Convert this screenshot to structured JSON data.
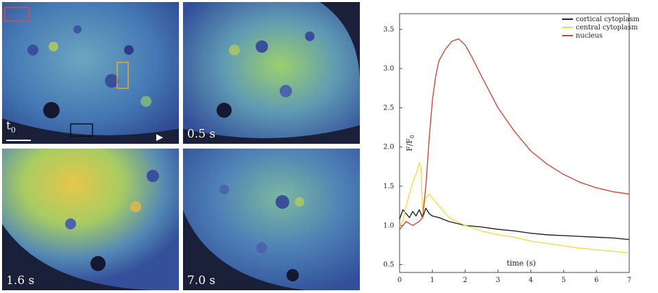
{
  "panels": [
    {
      "id": "t0",
      "label_main": "t",
      "label_sub": "0"
    },
    {
      "id": "p05",
      "label": "0.5 s"
    },
    {
      "id": "p16",
      "label": "1.6 s"
    },
    {
      "id": "p70",
      "label": "7.0 s"
    }
  ],
  "colors": {
    "cortical": "#222222",
    "central": "#f2dc4a",
    "nucleus": "#cc4a3c",
    "roi_red": "#e04a4a",
    "roi_orange": "#e8a838",
    "roi_black": "#101010"
  },
  "chart_data": {
    "type": "line",
    "xlabel": "time (s)",
    "ylabel": "F/F",
    "ylabel_sub": "0",
    "xlim": [
      0,
      7
    ],
    "ylim": [
      0.4,
      3.7
    ],
    "xticks": [
      0,
      1,
      2,
      3,
      4,
      5,
      6,
      7
    ],
    "xtick_labels": [
      "0",
      "1",
      "2",
      "3",
      "4",
      "5",
      "6",
      "7"
    ],
    "yticks": [
      0.5,
      1.0,
      1.5,
      2.0,
      2.5,
      3.0,
      3.5
    ],
    "ytick_labels": [
      "0.5",
      "1.0",
      "1.5",
      "2.0",
      "2.5",
      "3.0",
      "3.5"
    ],
    "legend_position": "top-right",
    "series": [
      {
        "name": "cortical cytoplasm",
        "color": "#222222",
        "x": [
          0,
          0.1,
          0.2,
          0.3,
          0.4,
          0.5,
          0.6,
          0.7,
          0.8,
          0.9,
          1.0,
          1.2,
          1.5,
          2.0,
          2.5,
          3.0,
          3.5,
          4.0,
          4.5,
          5.0,
          5.5,
          6.0,
          6.5,
          7.0
        ],
        "y": [
          1.08,
          1.2,
          1.15,
          1.1,
          1.18,
          1.12,
          1.2,
          1.1,
          1.22,
          1.15,
          1.12,
          1.1,
          1.05,
          1.0,
          0.98,
          0.95,
          0.93,
          0.9,
          0.88,
          0.87,
          0.86,
          0.85,
          0.84,
          0.82
        ]
      },
      {
        "name": "central cytoplasm",
        "color": "#f2dc4a",
        "x": [
          0,
          0.1,
          0.2,
          0.3,
          0.4,
          0.5,
          0.6,
          0.65,
          0.7,
          0.8,
          0.9,
          1.0,
          1.2,
          1.5,
          2.0,
          2.5,
          3.0,
          3.5,
          4.0,
          4.5,
          5.0,
          5.5,
          6.0,
          6.5,
          7.0
        ],
        "y": [
          1.0,
          1.05,
          1.25,
          1.4,
          1.55,
          1.65,
          1.8,
          1.75,
          1.2,
          1.35,
          1.4,
          1.35,
          1.25,
          1.1,
          1.0,
          0.93,
          0.88,
          0.85,
          0.8,
          0.77,
          0.74,
          0.71,
          0.69,
          0.67,
          0.65
        ]
      },
      {
        "name": "nucleus",
        "color": "#cc4a3c",
        "x": [
          0,
          0.1,
          0.2,
          0.4,
          0.6,
          0.7,
          0.8,
          0.9,
          1.0,
          1.1,
          1.2,
          1.4,
          1.6,
          1.8,
          2.0,
          2.2,
          2.5,
          3.0,
          3.5,
          4.0,
          4.5,
          5.0,
          5.5,
          6.0,
          6.5,
          7.0
        ],
        "y": [
          0.95,
          1.0,
          1.05,
          1.0,
          1.05,
          1.1,
          1.5,
          2.1,
          2.6,
          2.9,
          3.1,
          3.25,
          3.35,
          3.38,
          3.3,
          3.15,
          2.9,
          2.5,
          2.2,
          1.95,
          1.78,
          1.65,
          1.55,
          1.48,
          1.43,
          1.4
        ]
      }
    ]
  }
}
